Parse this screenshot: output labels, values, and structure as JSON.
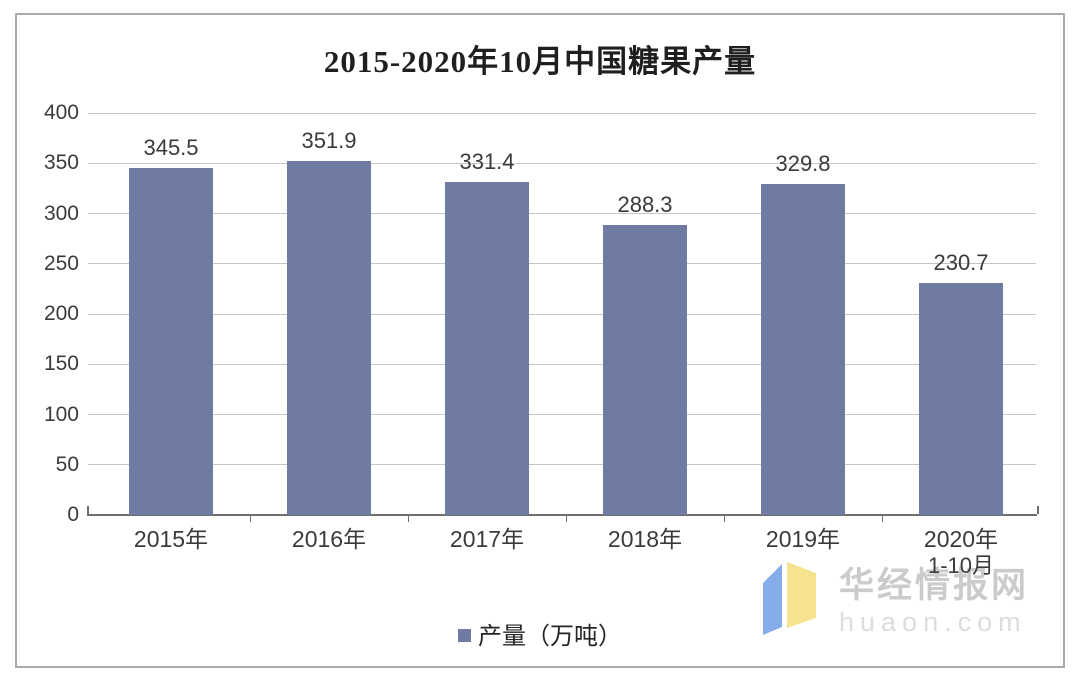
{
  "chart_data": {
    "type": "bar",
    "title": "2015-2020年10月中国糖果产量",
    "categories": [
      "2015年",
      "2016年",
      "2017年",
      "2018年",
      "2019年",
      "2020年"
    ],
    "category_sublabels": [
      "",
      "",
      "",
      "",
      "",
      "1-10月"
    ],
    "values": [
      345.5,
      351.9,
      331.4,
      288.3,
      329.8,
      230.7
    ],
    "value_labels": [
      "345.5",
      "351.9",
      "331.4",
      "288.3",
      "329.8",
      "230.7"
    ],
    "series": [
      {
        "name": "产量（万吨）",
        "values": [
          345.5,
          351.9,
          331.4,
          288.3,
          329.8,
          230.7
        ]
      }
    ],
    "xlabel": "",
    "ylabel": "",
    "ylim": [
      0,
      400
    ],
    "yticks": [
      0,
      50,
      100,
      150,
      200,
      250,
      300,
      350,
      400
    ],
    "grid": true,
    "legend_position": "bottom",
    "bar_color": "#6F7BA3"
  },
  "legend": {
    "label": "产量（万吨）",
    "marker_color": "#6F7BA3"
  },
  "watermark": {
    "brand": "华经情报网",
    "domain": "huaon.com",
    "logo_blue": "#85ACEB",
    "logo_yellow": "#F6E38F"
  },
  "colors": {
    "bar": "#6F7BA3",
    "gridline": "#C6C6C6",
    "axis_line": "#6E6E6E",
    "frame_border": "#AAAAAA",
    "label_text": "#3B3B3B",
    "title_text": "#1F1F1F",
    "watermark_brand_text": "#CBCBCB",
    "watermark_domain_text": "#DDDDDD"
  }
}
